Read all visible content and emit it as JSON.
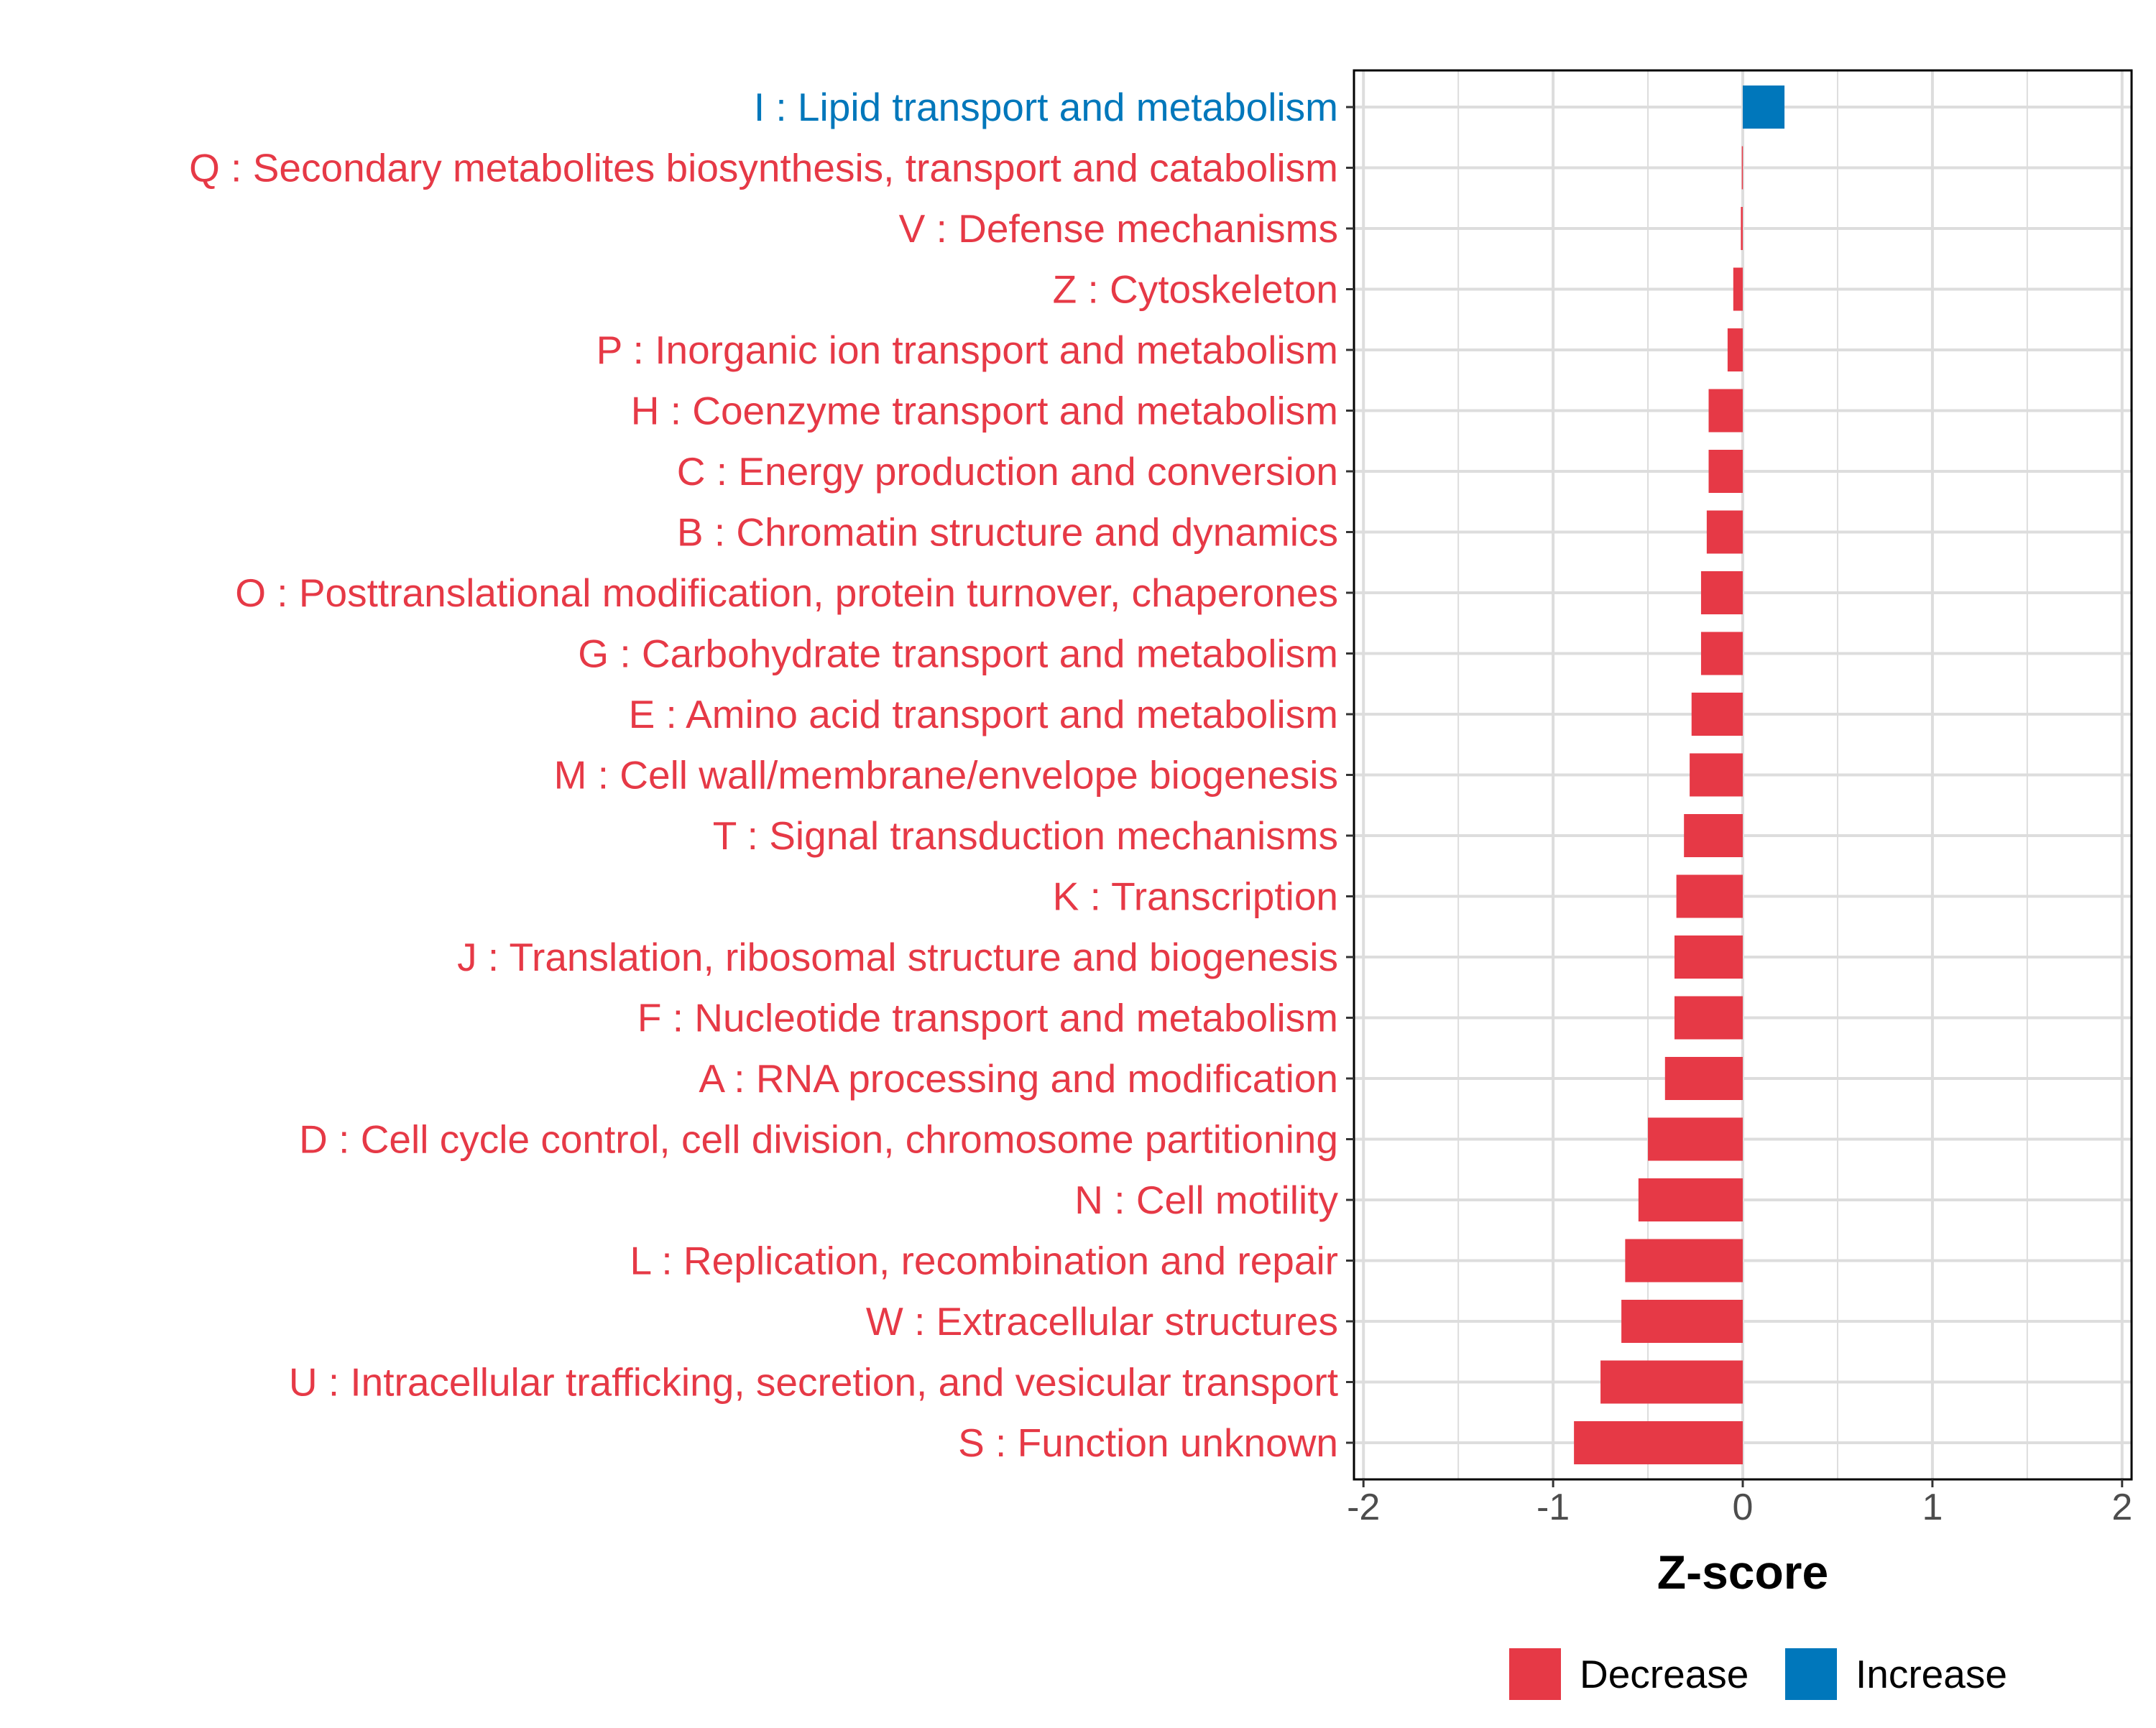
{
  "chart_data": {
    "type": "bar",
    "orientation": "horizontal",
    "title": "",
    "xlabel": "Z-score",
    "ylabel": "",
    "xlim": [
      -2.05,
      2.05
    ],
    "xticks": [
      -2,
      -1,
      0,
      1,
      2
    ],
    "grid": true,
    "legend": {
      "position": "bottom",
      "entries": [
        {
          "label": "Decrease",
          "color": "#E63946"
        },
        {
          "label": "Increase",
          "color": "#0077BB"
        }
      ]
    },
    "colors": {
      "Decrease": "#E63946",
      "Increase": "#0077BB",
      "grid": "#DDDDDD",
      "axis": "#333333",
      "tick_label": "#4D4D4D",
      "axis_title": "#000000"
    },
    "categories": [
      "I : Lipid transport and metabolism",
      "Q : Secondary metabolites biosynthesis, transport and catabolism",
      "V : Defense mechanisms",
      "Z : Cytoskeleton",
      "P : Inorganic ion transport and metabolism",
      "H : Coenzyme transport and metabolism",
      "C : Energy production and conversion",
      "B : Chromatin structure and dynamics",
      "O : Posttranslational modification, protein turnover, chaperones",
      "G : Carbohydrate transport and metabolism",
      "E : Amino acid transport and metabolism",
      "M : Cell wall/membrane/envelope biogenesis",
      "T : Signal transduction mechanisms",
      "K : Transcription",
      "J : Translation, ribosomal structure and biogenesis",
      "F : Nucleotide transport and metabolism",
      "A : RNA processing and modification",
      "D : Cell cycle control, cell division, chromosome partitioning",
      "N : Cell motility",
      "L : Replication, recombination and repair",
      "W : Extracellular structures",
      "U : Intracellular trafficking, secretion, and vesicular transport",
      "S : Function unknown"
    ],
    "values": [
      0.22,
      -0.005,
      -0.01,
      -0.05,
      -0.08,
      -0.18,
      -0.18,
      -0.19,
      -0.22,
      -0.22,
      -0.27,
      -0.28,
      -0.31,
      -0.35,
      -0.36,
      -0.36,
      -0.41,
      -0.5,
      -0.55,
      -0.62,
      -0.64,
      -0.75,
      -0.89
    ],
    "groups": [
      "Increase",
      "Decrease",
      "Decrease",
      "Decrease",
      "Decrease",
      "Decrease",
      "Decrease",
      "Decrease",
      "Decrease",
      "Decrease",
      "Decrease",
      "Decrease",
      "Decrease",
      "Decrease",
      "Decrease",
      "Decrease",
      "Decrease",
      "Decrease",
      "Decrease",
      "Decrease",
      "Decrease",
      "Decrease",
      "Decrease"
    ]
  }
}
